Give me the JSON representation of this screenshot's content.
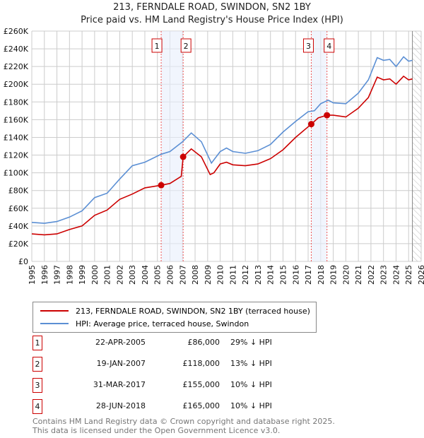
{
  "chart_data": {
    "type": "line",
    "title": "213, FERNDALE ROAD, SWINDON, SN2 1BY",
    "subtitle": "Price paid vs. HM Land Registry's House Price Index (HPI)",
    "xlim": [
      1995,
      2026
    ],
    "ylim": [
      0,
      260000
    ],
    "x_ticks": [
      "1995",
      "1996",
      "1997",
      "1998",
      "1999",
      "2000",
      "2001",
      "2002",
      "2003",
      "2004",
      "2005",
      "2006",
      "2007",
      "2008",
      "2009",
      "2010",
      "2011",
      "2012",
      "2013",
      "2014",
      "2015",
      "2016",
      "2017",
      "2018",
      "2019",
      "2020",
      "2021",
      "2022",
      "2023",
      "2024",
      "2025",
      "2026"
    ],
    "y_ticks": [
      "£0",
      "£20K",
      "£40K",
      "£60K",
      "£80K",
      "£100K",
      "£120K",
      "£140K",
      "£160K",
      "£180K",
      "£200K",
      "£220K",
      "£240K",
      "£260K"
    ],
    "grid": true,
    "series": [
      {
        "name": "213, FERNDALE ROAD, SWINDON, SN2 1BY (terraced house)",
        "color": "#cc0000",
        "x": [
          1995,
          1996,
          1997,
          1998,
          1999,
          2000,
          2001,
          2002,
          2003,
          2004,
          2005.3,
          2006,
          2006.9,
          2007.05,
          2007.7,
          2008.5,
          2009.2,
          2009.5,
          2010,
          2010.5,
          2011,
          2012,
          2013,
          2014,
          2015,
          2016,
          2017.25,
          2017.8,
          2018.5,
          2019,
          2020,
          2021,
          2021.8,
          2022.5,
          2023,
          2023.5,
          2024,
          2024.6,
          2025,
          2025.3
        ],
        "y": [
          31000,
          30000,
          31000,
          36000,
          40000,
          52000,
          58000,
          70000,
          76000,
          83000,
          86000,
          88000,
          96000,
          118000,
          127000,
          118000,
          98000,
          100000,
          110000,
          112000,
          109000,
          108000,
          110000,
          116000,
          126000,
          140000,
          155000,
          162000,
          165000,
          165000,
          163000,
          173000,
          185000,
          208000,
          205000,
          206000,
          200000,
          209000,
          205000,
          206000
        ]
      },
      {
        "name": "HPI: Average price, terraced house, Swindon",
        "color": "#5b8fd4",
        "x": [
          1995,
          1996,
          1997,
          1998,
          1999,
          2000,
          2001,
          2002,
          2003,
          2004,
          2005.3,
          2006,
          2007,
          2007.7,
          2008.5,
          2009.3,
          2010,
          2010.5,
          2011,
          2012,
          2013,
          2014,
          2015,
          2016,
          2017,
          2017.5,
          2018,
          2018.6,
          2019,
          2020,
          2021,
          2021.8,
          2022.5,
          2023,
          2023.5,
          2024,
          2024.6,
          2025,
          2025.3
        ],
        "y": [
          44000,
          43000,
          45000,
          50000,
          57000,
          72000,
          77000,
          93000,
          108000,
          112000,
          121000,
          124000,
          135000,
          145000,
          135000,
          111000,
          124000,
          128000,
          124000,
          122000,
          125000,
          132000,
          146000,
          158000,
          169000,
          170000,
          178000,
          182000,
          179000,
          178000,
          190000,
          205000,
          230000,
          227000,
          228000,
          220000,
          231000,
          226000,
          227000
        ]
      }
    ],
    "sales": [
      {
        "label": "1",
        "x": 2005.3,
        "y": 86000
      },
      {
        "label": "2",
        "x": 2007.05,
        "y": 118000
      },
      {
        "label": "3",
        "x": 2017.25,
        "y": 155000
      },
      {
        "label": "4",
        "x": 2018.5,
        "y": 165000
      }
    ],
    "hatched_from": 2025.3,
    "legend": "below"
  },
  "legend": {
    "red_label": "213, FERNDALE ROAD, SWINDON, SN2 1BY (terraced house)",
    "blue_label": "HPI: Average price, terraced house, Swindon"
  },
  "table": [
    {
      "num": "1",
      "date": "22-APR-2005",
      "price": "£86,000",
      "delta": "29% ↓ HPI"
    },
    {
      "num": "2",
      "date": "19-JAN-2007",
      "price": "£118,000",
      "delta": "13% ↓ HPI"
    },
    {
      "num": "3",
      "date": "31-MAR-2017",
      "price": "£155,000",
      "delta": "10% ↓ HPI"
    },
    {
      "num": "4",
      "date": "28-JUN-2018",
      "price": "£165,000",
      "delta": "10% ↓ HPI"
    }
  ],
  "footer": {
    "line1": "Contains HM Land Registry data © Crown copyright and database right 2025.",
    "line2": "This data is licensed under the Open Government Licence v3.0."
  }
}
